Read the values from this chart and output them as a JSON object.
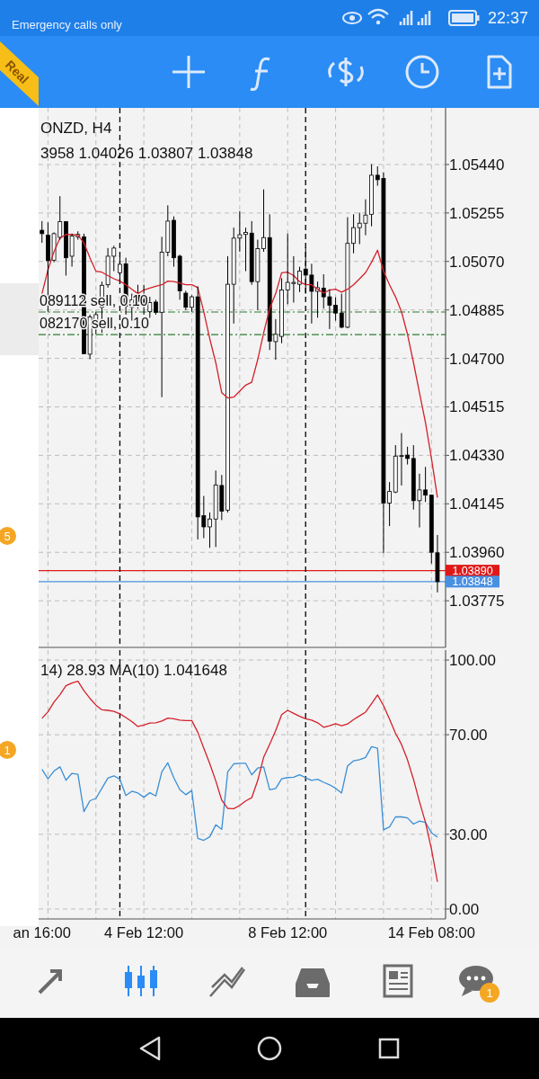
{
  "chart_data": [
    {
      "type": "candlestick",
      "title": "ONZD, H4",
      "subtitle": "3958 1.04026 1.03807 1.03848",
      "categories": [
        null,
        null,
        null,
        null,
        null,
        null,
        null,
        null,
        null,
        null,
        null,
        null,
        null,
        null,
        null,
        null,
        null,
        null,
        null,
        null,
        null,
        null,
        null,
        null,
        null,
        null,
        null,
        null,
        null,
        null,
        null,
        null,
        null,
        null,
        null,
        null,
        null,
        null,
        null,
        null,
        null,
        null,
        null,
        null,
        null,
        null,
        null,
        null,
        null,
        null,
        null,
        null,
        null,
        null,
        null,
        null,
        null,
        null,
        null,
        null,
        null,
        null,
        null,
        null,
        null,
        null,
        null
      ],
      "ohlc": [
        [
          1.05189,
          1.05224,
          1.05141,
          1.05176
        ],
        [
          1.0517,
          1.05219,
          1.04878,
          1.05073
        ],
        [
          1.05075,
          1.05181,
          1.05067,
          1.05176
        ],
        [
          1.05162,
          1.05319,
          1.05153,
          1.05222
        ],
        [
          1.05222,
          1.05224,
          1.05016,
          1.05084
        ],
        [
          1.0509,
          1.05176,
          1.0505,
          1.05167
        ],
        [
          1.05164,
          1.05185,
          1.05153,
          1.05173
        ],
        [
          1.05164,
          1.05176,
          1.04716,
          1.04718
        ],
        [
          1.04716,
          1.04867,
          1.04697,
          1.04858
        ],
        [
          1.04844,
          1.04878,
          1.04792,
          1.04867
        ],
        [
          1.04895,
          1.04993,
          1.04798,
          1.04979
        ],
        [
          1.04981,
          1.05121,
          1.0497,
          1.0509
        ],
        [
          1.0509,
          1.0513,
          1.05033,
          1.05121
        ],
        [
          1.05027,
          1.0509,
          1.04993,
          1.05059
        ],
        [
          1.05061,
          1.05084,
          1.04867,
          1.04899
        ],
        [
          1.04895,
          1.04947,
          1.04844,
          1.04924
        ],
        [
          1.04941,
          1.04981,
          1.0489,
          1.04918
        ],
        [
          1.04924,
          1.04981,
          1.04867,
          1.04907
        ],
        [
          1.04878,
          1.04935,
          1.04855,
          1.04913
        ],
        [
          1.04915,
          1.04924,
          1.04867,
          1.04876
        ],
        [
          1.04876,
          1.05164,
          1.04552,
          1.05105
        ],
        [
          1.05105,
          1.05284,
          1.0509,
          1.05224
        ],
        [
          1.05227,
          1.05242,
          1.0505,
          1.05084
        ],
        [
          1.0509,
          1.05096,
          1.04924,
          1.04958
        ],
        [
          1.04949,
          1.04958,
          1.04884,
          1.04895
        ],
        [
          1.04895,
          1.04941,
          1.04878,
          1.04935
        ],
        [
          1.04935,
          1.04975,
          1.04009,
          1.04095
        ],
        [
          1.041,
          1.04175,
          1.04014,
          1.04057
        ],
        [
          1.04057,
          1.04112,
          1.03977,
          1.04087
        ],
        [
          1.04087,
          1.04272,
          1.0398,
          1.04217
        ],
        [
          1.04215,
          1.04255,
          1.04083,
          1.04117
        ],
        [
          1.04121,
          1.0509,
          1.04112,
          1.04983
        ],
        [
          1.04983,
          1.05199,
          1.04833,
          1.05159
        ],
        [
          1.05159,
          1.05262,
          1.05107,
          1.05172
        ],
        [
          1.05173,
          1.05199,
          1.05033,
          1.05181
        ],
        [
          1.05178,
          1.05224,
          1.04981,
          1.04993
        ],
        [
          1.04993,
          1.05153,
          1.04884,
          1.05119
        ],
        [
          1.05119,
          1.05345,
          1.05107,
          1.05161
        ],
        [
          1.05161,
          1.0525,
          1.04732,
          1.04766
        ],
        [
          1.04764,
          1.0485,
          1.04695,
          1.04792
        ],
        [
          1.04784,
          1.05006,
          1.04758,
          1.04961
        ],
        [
          1.04961,
          1.05176,
          1.04907,
          1.0499
        ],
        [
          1.04986,
          1.0509,
          1.04913,
          1.0499
        ],
        [
          1.04983,
          1.0505,
          1.04953,
          1.05033
        ],
        [
          1.05041,
          1.05124,
          1.04947,
          1.05018
        ],
        [
          1.05018,
          1.05061,
          1.04833,
          1.04956
        ],
        [
          1.04956,
          1.04993,
          1.04855,
          1.0497
        ],
        [
          1.04968,
          1.05021,
          1.0489,
          1.04935
        ],
        [
          1.04935,
          1.04964,
          1.04812,
          1.04903
        ],
        [
          1.04903,
          1.04933,
          1.04844,
          1.04873
        ],
        [
          1.04873,
          1.04947,
          1.04815,
          1.04819
        ],
        [
          1.04819,
          1.05239,
          1.04815,
          1.05139
        ],
        [
          1.05139,
          1.0525,
          1.05101,
          1.05199
        ],
        [
          1.05199,
          1.05256,
          1.05136,
          1.05216
        ],
        [
          1.05216,
          1.05307,
          1.0517,
          1.05247
        ],
        [
          1.0525,
          1.05441,
          1.05204,
          1.05399
        ],
        [
          1.05399,
          1.05433,
          1.05359,
          1.05382
        ],
        [
          1.05387,
          1.0541,
          1.03957,
          1.04148
        ],
        [
          1.04148,
          1.04228,
          1.0406,
          1.04192
        ],
        [
          1.0419,
          1.04369,
          1.04186,
          1.04327
        ],
        [
          1.04326,
          1.04415,
          1.04215,
          1.04329
        ],
        [
          1.04331,
          1.04363,
          1.04295,
          1.04318
        ],
        [
          1.04318,
          1.04369,
          1.04123,
          1.04157
        ],
        [
          1.04157,
          1.0426,
          1.04055,
          1.04198
        ],
        [
          1.04198,
          1.04286,
          1.04152,
          1.04178
        ],
        [
          1.04178,
          1.0418,
          1.03917,
          1.0396
        ],
        [
          1.03958,
          1.04026,
          1.03807,
          1.03848
        ]
      ],
      "series": [
        {
          "type": "line",
          "color": "#d4202a",
          "values": [
            1.04947,
            1.05038,
            1.05107,
            1.05159,
            1.05173,
            1.05173,
            1.0517,
            1.05141,
            1.05084,
            1.05033,
            1.05029,
            1.05016,
            1.05004,
            1.04995,
            1.04981,
            1.04964,
            1.04947,
            1.04961,
            1.04968,
            1.04975,
            1.04981,
            1.04995,
            1.04993,
            1.04987,
            1.04981,
            1.04981,
            1.0497,
            1.04878,
            1.04775,
            1.04684,
            1.04569,
            1.04549,
            1.04552,
            1.04575,
            1.04598,
            1.04609,
            1.04695,
            1.04798,
            1.0489,
            1.04947,
            1.05027,
            1.05029,
            1.05016,
            1.04993,
            1.04981,
            1.04981,
            1.04964,
            1.04949,
            1.04961,
            1.04964,
            1.04953,
            1.04964,
            1.04981,
            1.05004,
            1.05027,
            1.05067,
            1.05113,
            1.05033,
            1.04981,
            1.04935,
            1.04878,
            1.04792,
            1.04684,
            1.04569,
            1.04455,
            1.04318,
            1.04169
          ]
        }
      ],
      "ylim": [
        1.03597,
        1.05656
      ],
      "yticks": [
        {
          "value": 1.0544,
          "label": "1.05440"
        },
        {
          "value": 1.05255,
          "label": "1.05255"
        },
        {
          "value": 1.0507,
          "label": "1.05070"
        },
        {
          "value": 1.04885,
          "label": "1.04885"
        },
        {
          "value": 1.047,
          "label": "1.04700"
        },
        {
          "value": 1.04515,
          "label": "1.04515"
        },
        {
          "value": 1.0433,
          "label": "1.04330"
        },
        {
          "value": 1.04145,
          "label": "1.04145"
        },
        {
          "value": 1.0396,
          "label": "1.03960"
        },
        {
          "value": 1.03775,
          "label": "1.03775"
        }
      ],
      "grid": true,
      "tick_labels": "y",
      "ref_lines": [
        {
          "axis": "y",
          "value": 1.04877,
          "label": "089112 sell, 0.10",
          "color": "#2e7d32",
          "line_style": "dashed"
        },
        {
          "axis": "y",
          "value": 1.04791,
          "label": "082170 sell, 0.10",
          "color": "#2e7d32",
          "line_style": "dashed"
        },
        {
          "axis": "y",
          "value": 1.0389,
          "label": "1.03890",
          "color": "#e01818",
          "line_style": "solid"
        },
        {
          "axis": "y",
          "value": 1.03848,
          "label": "1.03848",
          "color": "#4a90e2",
          "line_style": "solid"
        }
      ],
      "annotations": [
        "Real",
        "Emergency calls only",
        "22:37",
        "5",
        "1",
        "1"
      ]
    },
    {
      "type": "line",
      "title": "14) 28.93 MA(10) 1.041648",
      "categories": [
        "an 16:00",
        null,
        null,
        null,
        null,
        null,
        null,
        null,
        null,
        null,
        null,
        null,
        null,
        null,
        null,
        null,
        null,
        "4 Feb 12:00",
        null,
        null,
        null,
        null,
        null,
        null,
        null,
        null,
        null,
        null,
        null,
        null,
        null,
        null,
        null,
        null,
        null,
        null,
        null,
        null,
        null,
        null,
        null,
        "8 Feb 12:00",
        null,
        null,
        null,
        null,
        null,
        null,
        null,
        null,
        null,
        null,
        null,
        null,
        null,
        null,
        null,
        null,
        null,
        null,
        null,
        null,
        null,
        null,
        null,
        "14 Feb 08:00",
        null
      ],
      "series": [
        {
          "color": "#3a8fd6",
          "values": [
            56.1,
            52.3,
            55.4,
            57.1,
            51.7,
            54.5,
            54.1,
            39.1,
            43.5,
            44.4,
            48.5,
            52.6,
            53.5,
            52.1,
            45.6,
            47.3,
            46.6,
            44.9,
            46.7,
            45.4,
            55.1,
            58.7,
            52.7,
            47.9,
            45.9,
            47.6,
            28.4,
            27.6,
            29.0,
            33.8,
            32.0,
            55.1,
            58.3,
            58.5,
            58.5,
            53.9,
            56.6,
            57.1,
            47.9,
            48.4,
            52.3,
            52.8,
            52.9,
            53.9,
            52.7,
            51.7,
            52.1,
            50.9,
            49.9,
            48.5,
            46.6,
            57.5,
            59.5,
            60.0,
            60.9,
            65.2,
            64.6,
            31.8,
            33.0,
            37.0,
            37.0,
            36.6,
            34.1,
            35.3,
            34.8,
            30.6,
            28.9
          ]
        },
        {
          "color": "#d4202a",
          "values": [
            76.6,
            79.2,
            83.1,
            86.1,
            89.7,
            90.8,
            91.5,
            87.7,
            84.6,
            81.9,
            80.0,
            79.8,
            79.4,
            78.4,
            76.9,
            75.3,
            73.3,
            73.9,
            74.7,
            74.8,
            75.5,
            76.7,
            76.4,
            75.9,
            75.7,
            75.7,
            71.0,
            64.6,
            58.4,
            51.5,
            43.7,
            40.4,
            40.3,
            41.6,
            43.4,
            44.7,
            51.6,
            61.0,
            66.2,
            71.7,
            78.1,
            79.8,
            78.6,
            77.4,
            76.4,
            75.9,
            74.8,
            73.0,
            73.6,
            74.4,
            73.6,
            74.3,
            76.1,
            77.6,
            79.1,
            82.5,
            86.0,
            81.7,
            76.3,
            70.6,
            66.1,
            59.9,
            52.1,
            43.1,
            34.8,
            24.0,
            10.9
          ]
        }
      ],
      "ylim": [
        -4,
        104
      ],
      "yticks": [
        {
          "value": 100,
          "label": "100.00"
        },
        {
          "value": 70,
          "label": "70.00"
        },
        {
          "value": 30,
          "label": "30.00"
        },
        {
          "value": 0,
          "label": "0.00"
        }
      ],
      "grid": true
    }
  ]
}
